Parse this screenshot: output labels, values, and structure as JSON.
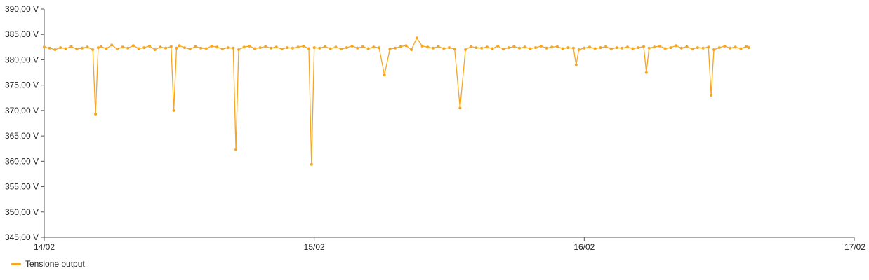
{
  "chart_data": {
    "type": "line",
    "title": "",
    "xlabel": "",
    "ylabel": "",
    "x_ticks": [
      "14/02",
      "15/02",
      "16/02",
      "17/02"
    ],
    "x_range": [
      0,
      3
    ],
    "ylim": [
      345,
      390
    ],
    "y_ticks": [
      345,
      350,
      355,
      360,
      365,
      370,
      375,
      380,
      385,
      390
    ],
    "y_tick_labels": [
      "345,00 V",
      "350,00 V",
      "355,00 V",
      "360,00 V",
      "365,00 V",
      "370,00 V",
      "375,00 V",
      "380,00 V",
      "385,00 V",
      "390,00 V"
    ],
    "grid": false,
    "legend_position": "bottom-left",
    "series": [
      {
        "name": "Tensione output",
        "color": "#f5a623",
        "x": [
          0.0,
          0.02,
          0.04,
          0.06,
          0.08,
          0.1,
          0.12,
          0.14,
          0.16,
          0.18,
          0.19,
          0.2,
          0.21,
          0.23,
          0.25,
          0.27,
          0.29,
          0.31,
          0.33,
          0.35,
          0.37,
          0.39,
          0.41,
          0.43,
          0.45,
          0.47,
          0.48,
          0.49,
          0.5,
          0.52,
          0.54,
          0.56,
          0.58,
          0.6,
          0.62,
          0.64,
          0.66,
          0.68,
          0.7,
          0.71,
          0.72,
          0.74,
          0.76,
          0.78,
          0.8,
          0.82,
          0.84,
          0.86,
          0.88,
          0.9,
          0.92,
          0.94,
          0.96,
          0.98,
          0.99,
          1.0,
          1.02,
          1.04,
          1.06,
          1.08,
          1.1,
          1.12,
          1.14,
          1.16,
          1.18,
          1.2,
          1.22,
          1.24,
          1.26,
          1.28,
          1.3,
          1.32,
          1.34,
          1.36,
          1.38,
          1.4,
          1.42,
          1.44,
          1.46,
          1.48,
          1.5,
          1.52,
          1.54,
          1.56,
          1.58,
          1.6,
          1.62,
          1.64,
          1.66,
          1.68,
          1.7,
          1.72,
          1.74,
          1.76,
          1.78,
          1.8,
          1.82,
          1.84,
          1.86,
          1.88,
          1.9,
          1.92,
          1.94,
          1.96,
          1.97,
          1.98,
          2.0,
          2.02,
          2.04,
          2.06,
          2.08,
          2.1,
          2.12,
          2.14,
          2.16,
          2.18,
          2.2,
          2.22,
          2.23,
          2.24,
          2.26,
          2.28,
          2.3,
          2.32,
          2.34,
          2.36,
          2.38,
          2.4,
          2.42,
          2.44,
          2.46,
          2.47,
          2.48,
          2.5,
          2.52,
          2.54,
          2.56,
          2.58,
          2.6,
          2.61
        ],
        "values": [
          382.5,
          382.3,
          382.0,
          382.4,
          382.2,
          382.6,
          382.1,
          382.3,
          382.5,
          382.0,
          369.3,
          382.4,
          382.6,
          382.2,
          382.9,
          382.1,
          382.5,
          382.3,
          382.8,
          382.2,
          382.4,
          382.7,
          382.0,
          382.5,
          382.3,
          382.6,
          370.0,
          382.3,
          382.8,
          382.4,
          382.1,
          382.6,
          382.3,
          382.2,
          382.7,
          382.5,
          382.1,
          382.4,
          382.3,
          362.3,
          382.0,
          382.5,
          382.7,
          382.2,
          382.4,
          382.6,
          382.3,
          382.5,
          382.1,
          382.4,
          382.3,
          382.5,
          382.7,
          382.2,
          359.4,
          382.4,
          382.3,
          382.6,
          382.2,
          382.5,
          382.1,
          382.4,
          382.7,
          382.3,
          382.6,
          382.2,
          382.5,
          382.4,
          377.0,
          382.1,
          382.3,
          382.6,
          382.8,
          382.0,
          384.3,
          382.7,
          382.5,
          382.3,
          382.6,
          382.2,
          382.4,
          382.1,
          370.5,
          382.0,
          382.6,
          382.4,
          382.3,
          382.5,
          382.2,
          382.7,
          382.1,
          382.4,
          382.6,
          382.3,
          382.5,
          382.2,
          382.4,
          382.7,
          382.3,
          382.5,
          382.6,
          382.2,
          382.4,
          382.3,
          379.0,
          382.0,
          382.3,
          382.5,
          382.2,
          382.4,
          382.6,
          382.1,
          382.4,
          382.3,
          382.5,
          382.2,
          382.4,
          382.6,
          377.5,
          382.3,
          382.5,
          382.7,
          382.2,
          382.4,
          382.8,
          382.3,
          382.6,
          382.1,
          382.4,
          382.3,
          382.5,
          373.0,
          382.0,
          382.4,
          382.7,
          382.3,
          382.5,
          382.2,
          382.6,
          382.4
        ]
      }
    ]
  }
}
